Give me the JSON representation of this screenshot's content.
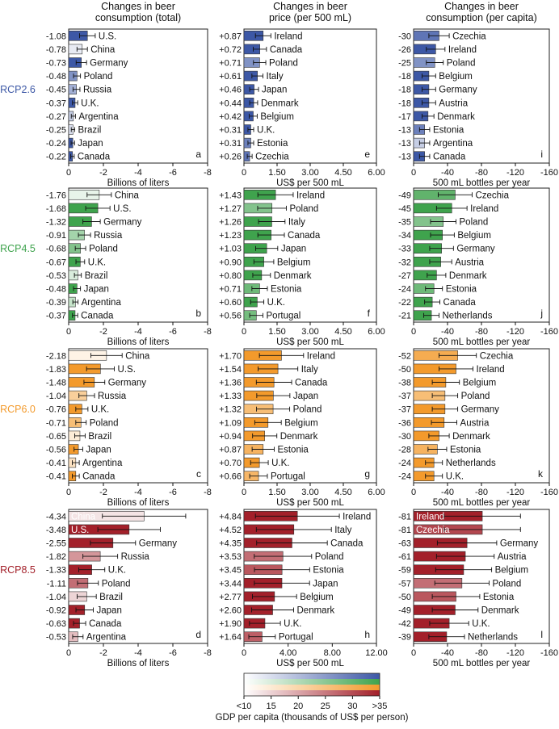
{
  "column_headers": [
    "Changes in beer\nconsumption (total)",
    "Changes in beer\nprice (per 500 mL)",
    "Changes in beer\nconsumption (per capita)"
  ],
  "row_labels": [
    "RCP2.6",
    "RCP4.5",
    "RCP6.0",
    "RCP8.5"
  ],
  "colors": {
    "RCP2.6": "#3d58a6",
    "RCP4.5": "#3fa34d",
    "RCP6.0": "#f39a2c",
    "RCP8.5": "#a3202a",
    "axis": "#222222"
  },
  "colorbar": {
    "title": "GDP per capita (thousands of US$ per person)",
    "ticks": [
      "<10",
      "15",
      "20",
      "25",
      "30",
      ">35"
    ]
  },
  "chart_data": [
    {
      "panel": "a",
      "type": "bar",
      "scenario": "RCP2.6",
      "column": 0,
      "categories": [
        "U.S.",
        "China",
        "Germany",
        "Poland",
        "Russia",
        "U.K.",
        "Argentina",
        "Brazil",
        "Japan",
        "Canada"
      ],
      "values": [
        -1.08,
        -0.78,
        -0.73,
        -0.48,
        -0.45,
        -0.37,
        -0.27,
        -0.25,
        -0.24,
        -0.22
      ],
      "value_labels": [
        "-1.08",
        "-0.78",
        "-0.73",
        "-0.48",
        "-0.45",
        "-0.37",
        "-0.27",
        "-0.25",
        "-0.24",
        "-0.22"
      ],
      "errors": [
        0.45,
        0.3,
        0.3,
        0.2,
        0.2,
        0.15,
        0.12,
        0.1,
        0.1,
        0.1
      ],
      "gdp": [
        35,
        10,
        35,
        25,
        20,
        35,
        15,
        12,
        35,
        35
      ],
      "xlim": [
        0,
        -8
      ],
      "xticks": [
        "0",
        "-2",
        "-4",
        "-6",
        "-8"
      ],
      "xlabel": "Billions of liters",
      "inside_labels": []
    },
    {
      "panel": "e",
      "type": "bar",
      "scenario": "RCP2.6",
      "column": 1,
      "categories": [
        "Ireland",
        "Canada",
        "Poland",
        "Italy",
        "Japan",
        "Denmark",
        "Belgium",
        "U.K.",
        "Estonia",
        "Czechia"
      ],
      "values": [
        0.87,
        0.72,
        0.71,
        0.61,
        0.46,
        0.44,
        0.42,
        0.31,
        0.31,
        0.26
      ],
      "value_labels": [
        "+0.87",
        "+0.72",
        "+0.71",
        "+0.61",
        "+0.46",
        "+0.44",
        "+0.42",
        "+0.31",
        "+0.31",
        "+0.26"
      ],
      "errors": [
        0.35,
        0.3,
        0.28,
        0.25,
        0.2,
        0.18,
        0.18,
        0.13,
        0.13,
        0.11
      ],
      "gdp": [
        35,
        35,
        25,
        35,
        35,
        35,
        35,
        35,
        28,
        30
      ],
      "xlim": [
        0,
        6
      ],
      "xticks": [
        "0",
        "1.50",
        "3.00",
        "4.50",
        "6.00"
      ],
      "xlabel": "US$ per 500 mL",
      "inside_labels": []
    },
    {
      "panel": "i",
      "type": "bar",
      "scenario": "RCP2.6",
      "column": 2,
      "categories": [
        "Czechia",
        "Ireland",
        "Poland",
        "Belgium",
        "Germany",
        "Austria",
        "Denmark",
        "Estonia",
        "Argentina",
        "Canada"
      ],
      "values": [
        -30,
        -26,
        -25,
        -18,
        -18,
        -18,
        -17,
        -13,
        -13,
        -13
      ],
      "value_labels": [
        "-30",
        "-26",
        "-25",
        "-18",
        "-18",
        "-18",
        "-17",
        "-13",
        "-13",
        "-13"
      ],
      "errors": [
        12,
        11,
        10,
        8,
        8,
        8,
        7,
        6,
        6,
        6
      ],
      "gdp": [
        30,
        35,
        25,
        35,
        35,
        35,
        35,
        28,
        15,
        35
      ],
      "xlim": [
        0,
        -160
      ],
      "xticks": [
        "0",
        "-40",
        "-80",
        "-120",
        "-160"
      ],
      "xlabel": "500 mL bottles per year",
      "inside_labels": []
    },
    {
      "panel": "b",
      "type": "bar",
      "scenario": "RCP4.5",
      "column": 0,
      "categories": [
        "China",
        "U.S.",
        "Germany",
        "Russia",
        "Poland",
        "U.K.",
        "Brazil",
        "Japan",
        "Argentina",
        "Canada"
      ],
      "values": [
        -1.76,
        -1.68,
        -1.32,
        -0.91,
        -0.68,
        -0.67,
        -0.53,
        -0.48,
        -0.39,
        -0.37
      ],
      "value_labels": [
        "-1.76",
        "-1.68",
        "-1.32",
        "-0.91",
        "-0.68",
        "-0.67",
        "-0.53",
        "-0.48",
        "-0.39",
        "-0.37"
      ],
      "errors": [
        0.7,
        0.7,
        0.5,
        0.35,
        0.3,
        0.25,
        0.2,
        0.2,
        0.15,
        0.15
      ],
      "gdp": [
        10,
        35,
        35,
        20,
        25,
        35,
        12,
        35,
        15,
        35
      ],
      "xlim": [
        0,
        -8
      ],
      "xticks": [
        "0",
        "-2",
        "-4",
        "-6",
        "-8"
      ],
      "xlabel": "Billions of liters",
      "inside_labels": []
    },
    {
      "panel": "f",
      "type": "bar",
      "scenario": "RCP4.5",
      "column": 1,
      "categories": [
        "Ireland",
        "Poland",
        "Italy",
        "Canada",
        "Japan",
        "Belgium",
        "Denmark",
        "Estonia",
        "U.K.",
        "Portugal"
      ],
      "values": [
        1.43,
        1.27,
        1.26,
        1.23,
        1.03,
        0.9,
        0.8,
        0.71,
        0.6,
        0.56
      ],
      "value_labels": [
        "+1.43",
        "+1.27",
        "+1.26",
        "+1.23",
        "+1.03",
        "+0.90",
        "+0.80",
        "+0.71",
        "+0.60",
        "+0.56"
      ],
      "errors": [
        0.8,
        0.65,
        0.6,
        0.6,
        0.5,
        0.45,
        0.4,
        0.35,
        0.3,
        0.3
      ],
      "gdp": [
        35,
        25,
        35,
        35,
        35,
        35,
        35,
        28,
        35,
        27
      ],
      "xlim": [
        0,
        6
      ],
      "xticks": [
        "0",
        "1.50",
        "3.00",
        "4.50",
        "6.00"
      ],
      "xlabel": "US$ per 500 mL",
      "inside_labels": []
    },
    {
      "panel": "j",
      "type": "bar",
      "scenario": "RCP4.5",
      "column": 2,
      "categories": [
        "Czechia",
        "Ireland",
        "Poland",
        "Belgium",
        "Germany",
        "Austria",
        "Denmark",
        "Estonia",
        "Canada",
        "Netherlands"
      ],
      "values": [
        -49,
        -45,
        -35,
        -34,
        -33,
        -32,
        -27,
        -24,
        -22,
        -21
      ],
      "value_labels": [
        "-49",
        "-45",
        "-35",
        "-34",
        "-33",
        "-32",
        "-27",
        "-24",
        "-22",
        "-21"
      ],
      "errors": [
        20,
        18,
        15,
        14,
        14,
        13,
        11,
        10,
        9,
        9
      ],
      "gdp": [
        30,
        35,
        25,
        35,
        35,
        35,
        35,
        28,
        35,
        35
      ],
      "xlim": [
        0,
        -160
      ],
      "xticks": [
        "0",
        "-40",
        "-80",
        "-120",
        "-160"
      ],
      "xlabel": "500 mL bottles per year",
      "inside_labels": []
    },
    {
      "panel": "c",
      "type": "bar",
      "scenario": "RCP6.0",
      "column": 0,
      "categories": [
        "China",
        "U.S.",
        "Germany",
        "Russia",
        "U.K.",
        "Poland",
        "Brazil",
        "Japan",
        "Argentina",
        "Canada"
      ],
      "values": [
        -2.18,
        -1.83,
        -1.48,
        -1.04,
        -0.76,
        -0.71,
        -0.65,
        -0.56,
        -0.41,
        -0.41
      ],
      "value_labels": [
        "-2.18",
        "-1.83",
        "-1.48",
        "-1.04",
        "-0.76",
        "-0.71",
        "-0.65",
        "-0.56",
        "-0.41",
        "-0.41"
      ],
      "errors": [
        0.9,
        0.8,
        0.6,
        0.45,
        0.35,
        0.3,
        0.3,
        0.25,
        0.2,
        0.2
      ],
      "gdp": [
        10,
        35,
        35,
        20,
        35,
        25,
        12,
        35,
        15,
        35
      ],
      "xlim": [
        0,
        -8
      ],
      "xticks": [
        "0",
        "-2",
        "-4",
        "-6",
        "-8"
      ],
      "xlabel": "Billions of liters",
      "inside_labels": []
    },
    {
      "panel": "g",
      "type": "bar",
      "scenario": "RCP6.0",
      "column": 1,
      "categories": [
        "Ireland",
        "Italy",
        "Canada",
        "Japan",
        "Poland",
        "Belgium",
        "Denmark",
        "Estonia",
        "U.K.",
        "Portugal"
      ],
      "values": [
        1.7,
        1.54,
        1.36,
        1.33,
        1.32,
        1.09,
        0.94,
        0.87,
        0.7,
        0.66
      ],
      "value_labels": [
        "+1.70",
        "+1.54",
        "+1.36",
        "+1.33",
        "+1.32",
        "+1.09",
        "+0.94",
        "+0.87",
        "+0.70",
        "+0.66"
      ],
      "errors": [
        1.0,
        0.9,
        0.8,
        0.75,
        0.75,
        0.6,
        0.55,
        0.5,
        0.4,
        0.4
      ],
      "gdp": [
        35,
        35,
        35,
        35,
        25,
        35,
        35,
        28,
        35,
        27
      ],
      "xlim": [
        0,
        6
      ],
      "xticks": [
        "0",
        "1.50",
        "3.00",
        "4.50",
        "6.00"
      ],
      "xlabel": "US$ per 500 mL",
      "inside_labels": []
    },
    {
      "panel": "k",
      "type": "bar",
      "scenario": "RCP6.0",
      "column": 2,
      "categories": [
        "Czechia",
        "Ireland",
        "Belgium",
        "Poland",
        "Germany",
        "Austria",
        "Denmark",
        "Estonia",
        "Netherlands",
        "U.K."
      ],
      "values": [
        -52,
        -50,
        -38,
        -37,
        -37,
        -36,
        -30,
        -28,
        -24,
        -24
      ],
      "value_labels": [
        "-52",
        "-50",
        "-38",
        "-37",
        "-37",
        "-36",
        "-30",
        "-28",
        "-24",
        "-24"
      ],
      "errors": [
        22,
        20,
        16,
        15,
        15,
        15,
        12,
        11,
        10,
        10
      ],
      "gdp": [
        30,
        35,
        35,
        25,
        35,
        35,
        35,
        28,
        35,
        35
      ],
      "xlim": [
        0,
        -160
      ],
      "xticks": [
        "0",
        "-40",
        "-80",
        "-120",
        "-160"
      ],
      "xlabel": "500 mL bottles per year",
      "inside_labels": []
    },
    {
      "panel": "d",
      "type": "bar",
      "scenario": "RCP8.5",
      "column": 0,
      "categories": [
        "China",
        "U.S.",
        "Germany",
        "Russia",
        "U.K.",
        "Poland",
        "Brazil",
        "Japan",
        "Canada",
        "Argentina"
      ],
      "values": [
        -4.34,
        -3.48,
        -2.55,
        -1.82,
        -1.33,
        -1.11,
        -1.04,
        -0.92,
        -0.63,
        -0.53
      ],
      "value_labels": [
        "-4.34",
        "-3.48",
        "-2.55",
        "-1.82",
        "-1.33",
        "-1.11",
        "-1.04",
        "-0.92",
        "-0.63",
        "-0.53"
      ],
      "errors": [
        2.4,
        1.8,
        1.3,
        1.0,
        0.75,
        0.6,
        0.55,
        0.5,
        0.35,
        0.3
      ],
      "gdp": [
        10,
        35,
        35,
        20,
        35,
        25,
        12,
        35,
        35,
        15
      ],
      "xlim": [
        0,
        -8
      ],
      "xticks": [
        "0",
        "-2",
        "-4",
        "-6",
        "-8"
      ],
      "xlabel": "Billions of liters",
      "inside_labels": [
        "China",
        "U.S."
      ]
    },
    {
      "panel": "h",
      "type": "bar",
      "scenario": "RCP8.5",
      "column": 1,
      "categories": [
        "Ireland",
        "Italy",
        "Canada",
        "Poland",
        "Estonia",
        "Japan",
        "Belgium",
        "Denmark",
        "U.K.",
        "Portugal"
      ],
      "values": [
        4.84,
        4.52,
        4.35,
        3.53,
        3.45,
        3.44,
        2.77,
        2.6,
        1.9,
        1.64
      ],
      "value_labels": [
        "+4.84",
        "+4.52",
        "+4.35",
        "+3.53",
        "+3.45",
        "+3.44",
        "+2.77",
        "+2.60",
        "+1.90",
        "+1.64"
      ],
      "errors": [
        3.8,
        3.4,
        3.2,
        2.6,
        2.5,
        2.5,
        2.0,
        1.9,
        1.4,
        1.2
      ],
      "gdp": [
        35,
        35,
        35,
        25,
        28,
        35,
        35,
        35,
        35,
        27
      ],
      "xlim": [
        0,
        12
      ],
      "xticks": [
        "0",
        "4.00",
        "8.00",
        "12.00"
      ],
      "xlabel": "US$ per 500 mL",
      "inside_labels": []
    },
    {
      "panel": "l",
      "type": "bar",
      "scenario": "RCP8.5",
      "column": 2,
      "categories": [
        "Ireland",
        "Czechia",
        "Germany",
        "Austria",
        "Belgium",
        "Poland",
        "Estonia",
        "Denmark",
        "U.K.",
        "Netherlands"
      ],
      "values": [
        -81,
        -81,
        -63,
        -61,
        -59,
        -57,
        -50,
        -49,
        -42,
        -39
      ],
      "value_labels": [
        "-81",
        "-81",
        "-63",
        "-61",
        "-59",
        "-57",
        "-50",
        "-49",
        "-42",
        "-39"
      ],
      "errors": [
        45,
        45,
        35,
        34,
        33,
        32,
        28,
        27,
        23,
        21
      ],
      "gdp": [
        35,
        30,
        35,
        35,
        35,
        25,
        28,
        35,
        35,
        35
      ],
      "xlim": [
        0,
        -160
      ],
      "xticks": [
        "0",
        "-40",
        "-80",
        "-120",
        "-160"
      ],
      "xlabel": "500 mL bottles per year",
      "inside_labels": [
        "Ireland",
        "Czechia"
      ]
    }
  ]
}
